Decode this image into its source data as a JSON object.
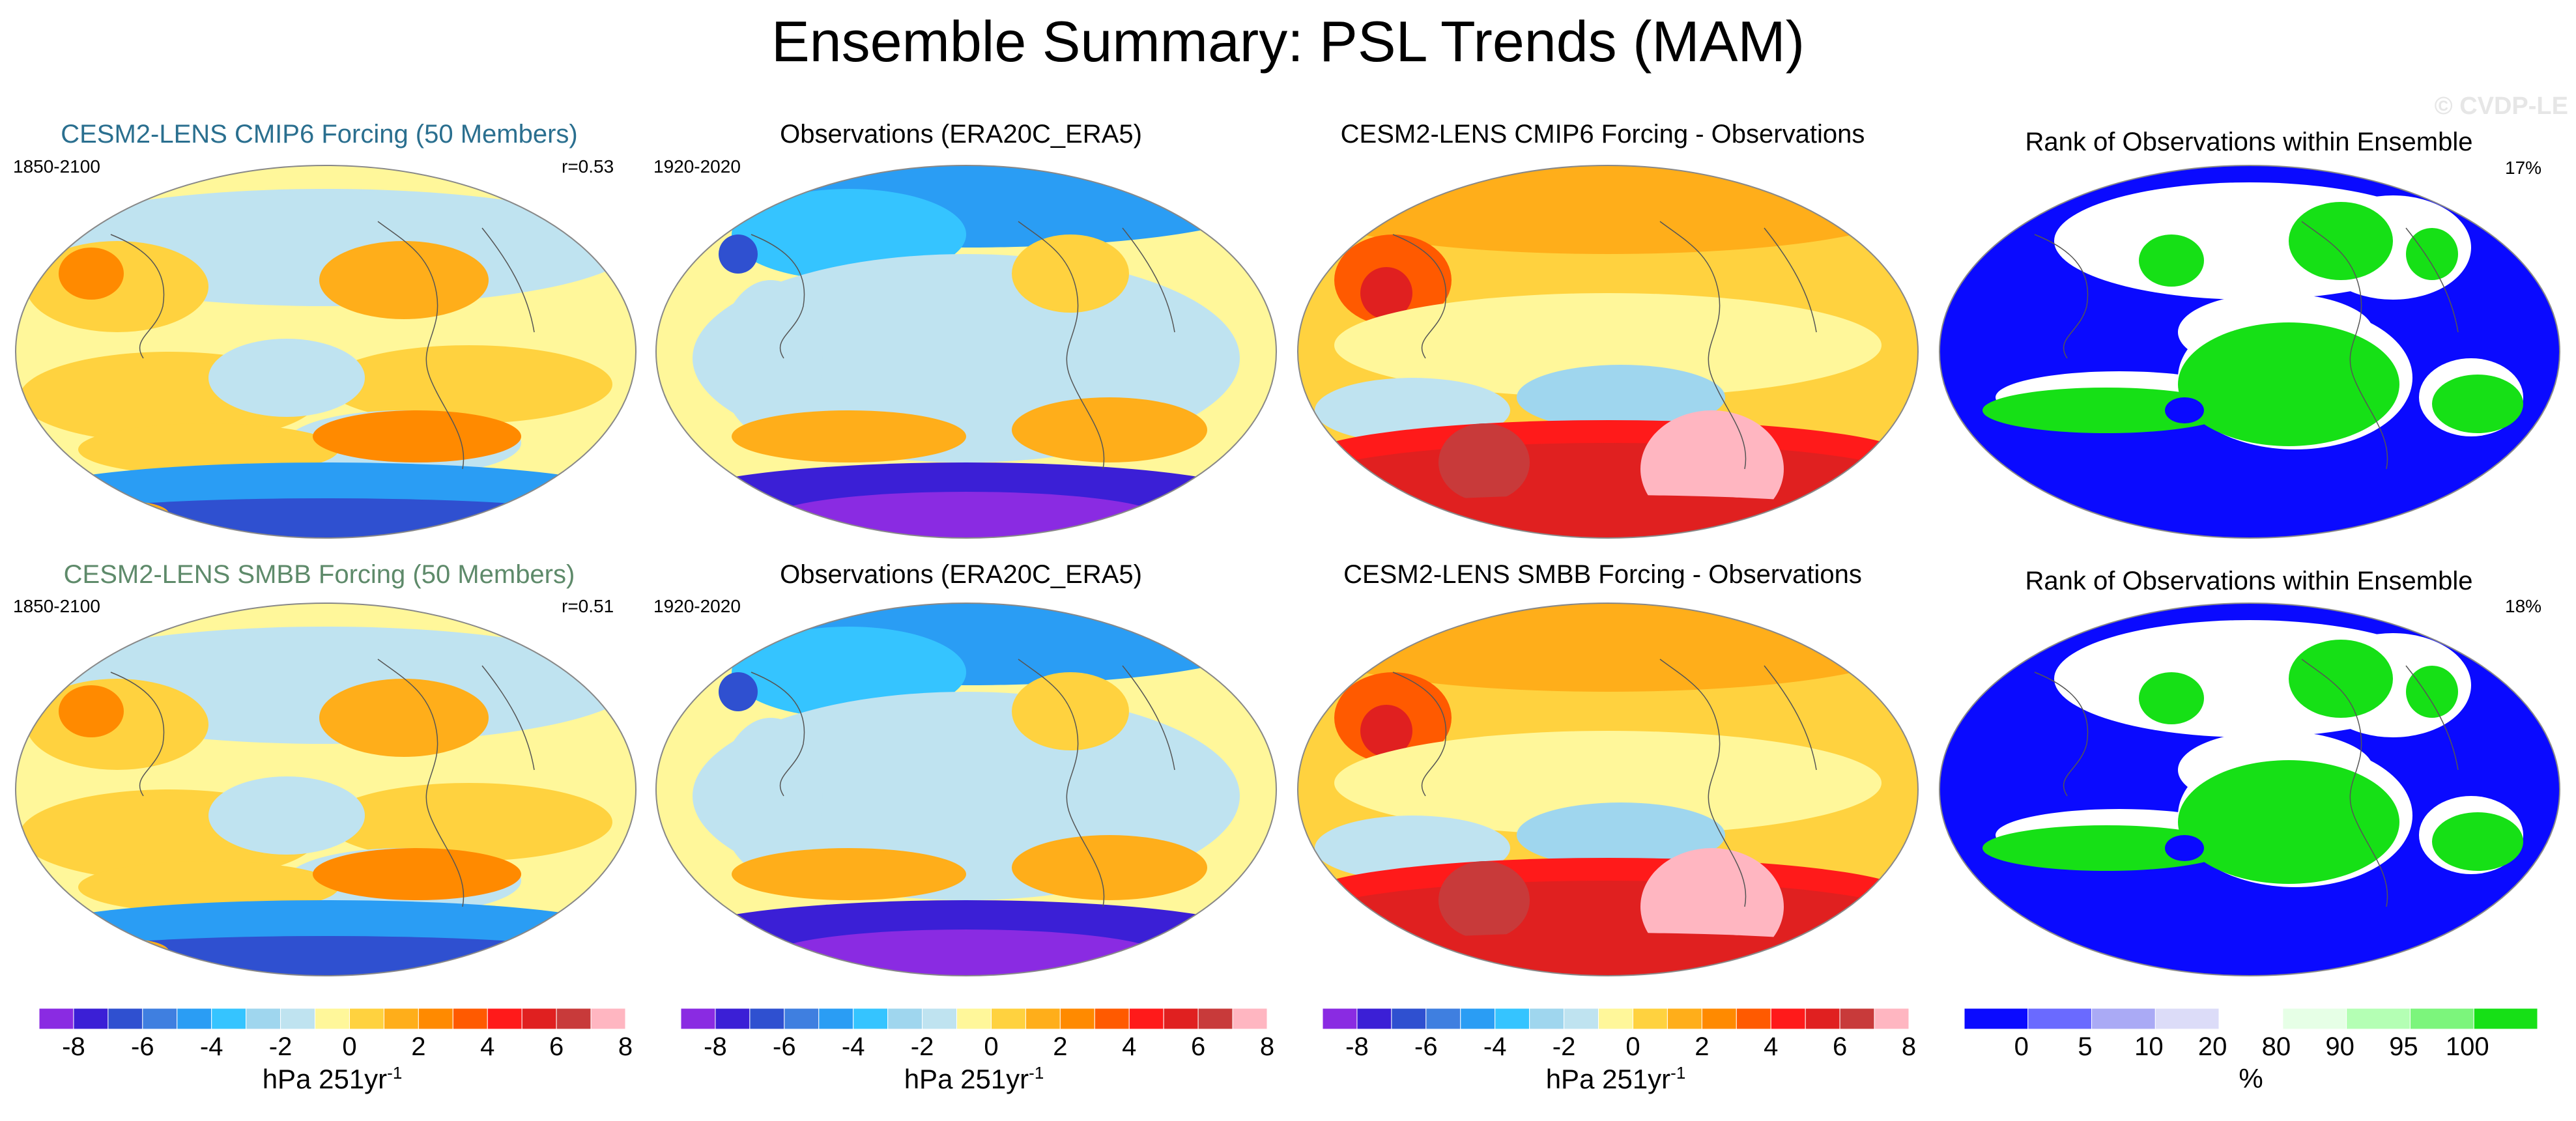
{
  "title": "Ensemble Summary: PSL Trends (MAM)",
  "watermark": "© CVDP-LE",
  "colors": {
    "cesm2_cmip6_title": "#2a6f8f",
    "cesm2_smbb_title": "#5e8a6a",
    "psl_palette": [
      "#8a2be2",
      "#3b1fd6",
      "#2f50d0",
      "#3f7fe0",
      "#2a9df4",
      "#35c4ff",
      "#9fd6ee",
      "#bfe3f0",
      "#fff79a",
      "#ffd23f",
      "#ffae1a",
      "#ff8a00",
      "#ff5a00",
      "#ff1a1a",
      "#e02020",
      "#c83a3a",
      "#ffb6c1"
    ],
    "rank_palette": [
      "#0a0aff",
      "#6a6aff",
      "#aaaaf5",
      "#dcdcf8",
      "#ffffff",
      "#e6ffe6",
      "#b4ffb4",
      "#7cf57c",
      "#16e016"
    ]
  },
  "rows": [
    {
      "panels": [
        {
          "title": "CESM2-LENS CMIP6 Forcing (50 Members)",
          "left": "1850-2100",
          "right": "r=0.53",
          "kind": "ensemble"
        },
        {
          "title": "Observations (ERA20C_ERA5)",
          "left": "1920-2020",
          "right": "",
          "kind": "obs"
        },
        {
          "title": "CESM2-LENS CMIP6 Forcing - Observations",
          "left": "",
          "right": "",
          "kind": "diff"
        },
        {
          "title": "Rank of Observations within Ensemble",
          "left": "",
          "right": "17%",
          "kind": "rank"
        }
      ]
    },
    {
      "panels": [
        {
          "title": "CESM2-LENS SMBB Forcing (50 Members)",
          "left": "1850-2100",
          "right": "r=0.51",
          "kind": "ensemble"
        },
        {
          "title": "Observations (ERA20C_ERA5)",
          "left": "1920-2020",
          "right": "",
          "kind": "obs"
        },
        {
          "title": "CESM2-LENS SMBB Forcing - Observations",
          "left": "",
          "right": "",
          "kind": "diff"
        },
        {
          "title": "Rank of Observations within Ensemble",
          "left": "",
          "right": "18%",
          "kind": "rank"
        }
      ]
    }
  ],
  "colorbars": [
    {
      "ticks": [
        "-8",
        "-6",
        "-4",
        "-2",
        "0",
        "2",
        "4",
        "6",
        "8"
      ],
      "label": "hPa 251yr",
      "sup": "-1"
    },
    {
      "ticks": [
        "-8",
        "-6",
        "-4",
        "-2",
        "0",
        "2",
        "4",
        "6",
        "8"
      ],
      "label": "hPa 251yr",
      "sup": "-1"
    },
    {
      "ticks": [
        "-8",
        "-6",
        "-4",
        "-2",
        "0",
        "2",
        "4",
        "6",
        "8"
      ],
      "label": "hPa 251yr",
      "sup": "-1"
    },
    {
      "ticks": [
        "0",
        "5",
        "10",
        "20",
        "80",
        "90",
        "95",
        "100"
      ],
      "label": "%",
      "sup": ""
    }
  ],
  "chart_data": [
    {
      "type": "heatmap",
      "title": "CESM2-LENS CMIP6 Forcing (50 Members)",
      "period": "1850-2100",
      "pattern_correlation": 0.53,
      "units": "hPa 251yr-1",
      "range": [
        -8,
        8
      ]
    },
    {
      "type": "heatmap",
      "title": "Observations (ERA20C_ERA5)",
      "period": "1920-2020",
      "units": "hPa 251yr-1",
      "range": [
        -8,
        8
      ]
    },
    {
      "type": "heatmap",
      "title": "CESM2-LENS CMIP6 Forcing - Observations",
      "units": "hPa 251yr-1",
      "range": [
        -8,
        8
      ]
    },
    {
      "type": "heatmap",
      "title": "Rank of Observations within Ensemble",
      "area_percent": 17,
      "units": "%",
      "range": [
        0,
        100
      ]
    },
    {
      "type": "heatmap",
      "title": "CESM2-LENS SMBB Forcing (50 Members)",
      "period": "1850-2100",
      "pattern_correlation": 0.51,
      "units": "hPa 251yr-1",
      "range": [
        -8,
        8
      ]
    },
    {
      "type": "heatmap",
      "title": "Observations (ERA20C_ERA5)",
      "period": "1920-2020",
      "units": "hPa 251yr-1",
      "range": [
        -8,
        8
      ]
    },
    {
      "type": "heatmap",
      "title": "CESM2-LENS SMBB Forcing - Observations",
      "units": "hPa 251yr-1",
      "range": [
        -8,
        8
      ]
    },
    {
      "type": "heatmap",
      "title": "Rank of Observations within Ensemble",
      "area_percent": 18,
      "units": "%",
      "range": [
        0,
        100
      ]
    }
  ]
}
